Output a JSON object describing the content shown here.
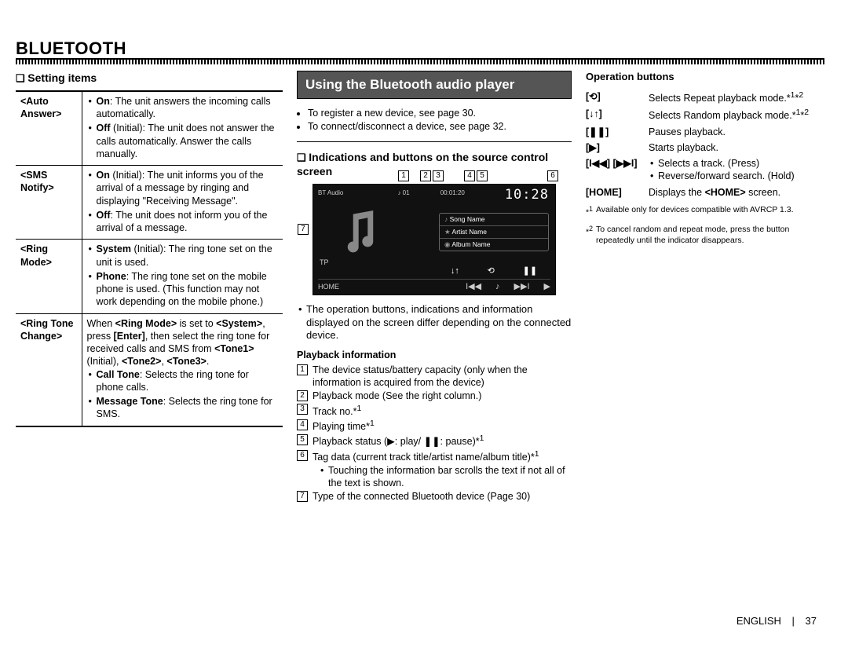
{
  "header": "BLUETOOTH",
  "footer": {
    "lang": "ENGLISH",
    "page": "37"
  },
  "col1": {
    "heading": "Setting items",
    "rows": [
      {
        "label": "<Auto Answer>",
        "body_html": "<ul class='bullet-list'><li><b>On</b>: The unit answers the incoming calls automatically.</li><li><b>Off</b> (Initial): The unit does not answer the calls automatically. Answer the calls manually.</li></ul>"
      },
      {
        "label": "<SMS Notify>",
        "body_html": "<ul class='bullet-list'><li><b>On</b> (Initial): The unit informs you of the arrival of a message by ringing and displaying \"Receiving Message\".</li><li><b>Off</b>: The unit does not inform you of the arrival of a message.</li></ul>"
      },
      {
        "label": "<Ring Mode>",
        "body_html": "<ul class='bullet-list'><li><b>System</b> (Initial): The ring tone set on the unit is used.</li><li><b>Phone</b>: The ring tone set on the mobile phone is used. (This function may not work depending on the mobile phone.)</li></ul>"
      },
      {
        "label": "<Ring Tone Change>",
        "body_html": "When <b>&lt;Ring Mode&gt;</b> is set to <b>&lt;System&gt;</b>, press <b>[Enter]</b>, then select the ring tone for received calls and SMS from <b>&lt;Tone1&gt;</b> (Initial), <b>&lt;Tone2&gt;</b>, <b>&lt;Tone3&gt;</b>.<ul class='bullet-list'><li><b>Call Tone</b>: Selects the ring tone for phone calls.</li><li><b>Message Tone</b>: Selects the ring tone for SMS.</li></ul>"
      }
    ]
  },
  "col2": {
    "banner": "Using the Bluetooth audio player",
    "intro": [
      "To register a new device, see page 30.",
      "To connect/disconnect a device, see page 32."
    ],
    "sub_heading": "Indications and buttons on the source control screen",
    "screen": {
      "status": "BT Audio",
      "track_label": "♪ 01",
      "time": "00:01:20",
      "clock": "10:28",
      "song": "Song Name",
      "artist": "Artist Name",
      "album": "Album Name",
      "tp": "TP",
      "home": "HOME"
    },
    "note_html": "<ul class='bullet-list'><li>The operation buttons, indications and information displayed on the screen differ depending on the connected device.</li></ul>",
    "playback_head": "Playback information",
    "playback_items": [
      {
        "n": "1",
        "text": "The device status/battery capacity (only when the information is acquired from the device)"
      },
      {
        "n": "2",
        "text": "Playback mode (See the right column.)"
      },
      {
        "n": "3",
        "text_html": "Track no.*<sup>1</sup>"
      },
      {
        "n": "4",
        "text_html": "Playing time*<sup>1</sup>"
      },
      {
        "n": "5",
        "text_html": "Playback status (▶: play/ ❚❚: pause)*<sup>1</sup>"
      },
      {
        "n": "6",
        "text_html": "Tag data (current track title/artist name/album title)*<sup>1</sup>",
        "sub": [
          "Touching the information bar scrolls the text if not all of the text is shown."
        ]
      },
      {
        "n": "7",
        "text": "Type of the connected Bluetooth device (Page 30)"
      }
    ]
  },
  "col3": {
    "heading": "Operation buttons",
    "rows": [
      {
        "sym": "[⟲]",
        "desc_html": "Selects Repeat playback mode.*<sup>1</sup>*<sup>2</sup>"
      },
      {
        "sym": "[↓↑]",
        "desc_html": "Selects Random playback mode.*<sup>1</sup>*<sup>2</sup>"
      },
      {
        "sym": "[❚❚]",
        "desc_html": "Pauses playback."
      },
      {
        "sym": "[▶]",
        "desc_html": "Starts playback."
      },
      {
        "sym": "[I◀◀] [▶▶I]",
        "desc_html": "<ul><li>Selects a track. (Press)</li><li>Reverse/forward search. (Hold)</li></ul>"
      },
      {
        "sym": "[HOME]",
        "desc_html": "Displays the <b>&lt;HOME&gt;</b> screen."
      }
    ],
    "footnotes": [
      {
        "star": "*1",
        "text": "Available only for devices compatible with AVRCP 1.3."
      },
      {
        "star": "*2",
        "text": "To cancel random and repeat mode, press the button repeatedly until the indicator disappears."
      }
    ]
  }
}
